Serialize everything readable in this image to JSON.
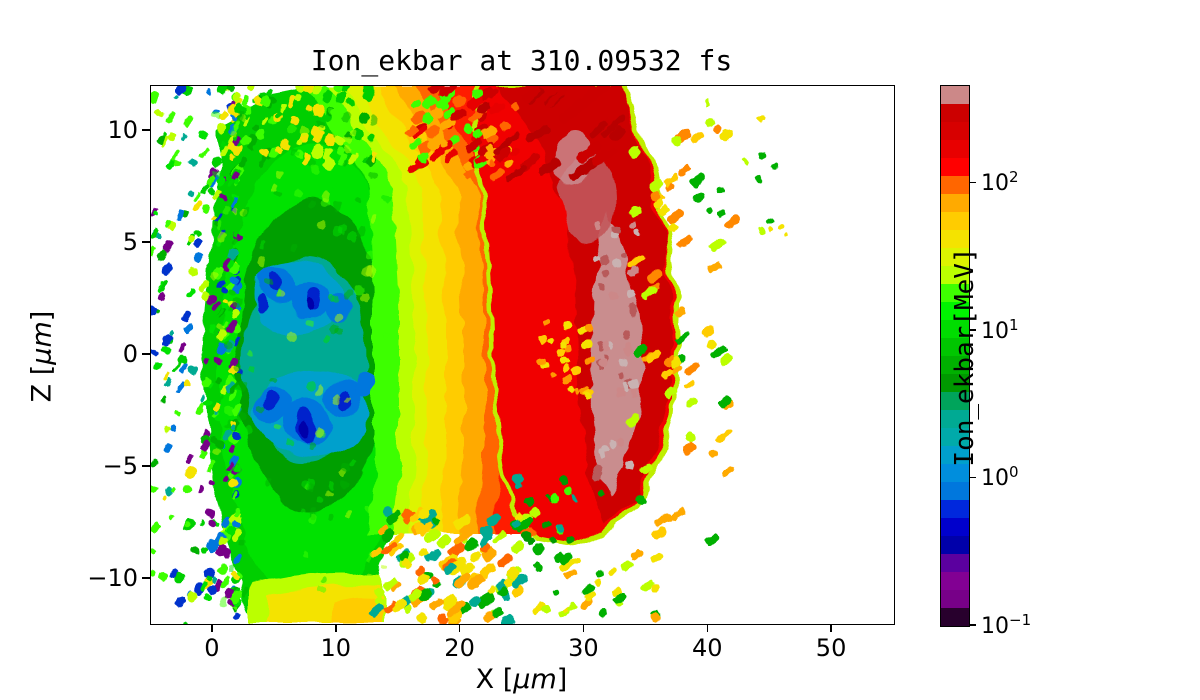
{
  "figure": {
    "title": "Ion_ekbar at 310.09532 fs",
    "x_axis": {
      "label_prefix": "X [",
      "label_unit": "μm",
      "label_suffix": "]"
    },
    "y_axis": {
      "label_prefix": "Z [",
      "label_unit": "μm",
      "label_suffix": "]"
    },
    "colorbar_label": "Ion_ekbar[MeV]"
  },
  "chart_data": {
    "type": "heatmap",
    "title": "Ion_ekbar at 310.09532 fs",
    "quantity": "Ion_ekbar",
    "time_fs": 310.09532,
    "unit": "MeV",
    "xlabel": "X [μm]",
    "ylabel": "Z [μm]",
    "xlim": [
      -5,
      55
    ],
    "ylim": [
      -12,
      12
    ],
    "x_ticks": [
      0,
      10,
      20,
      30,
      40,
      50
    ],
    "y_ticks": [
      10,
      5,
      0,
      -5,
      -10
    ],
    "grid": false,
    "colorbar": {
      "label": "Ion_ekbar[MeV]",
      "scale": "log",
      "tick_exponents": [
        2,
        1,
        0,
        -1
      ],
      "tick_values_MeV": [
        100,
        10,
        1,
        0.1
      ],
      "log_min": -1,
      "log_max": 2.66,
      "range_MeV": [
        0.1,
        460
      ],
      "colormap": "nipy_spectral",
      "n_levels": 30,
      "level_colors": [
        "#28002d",
        "#770088",
        "#820093",
        "#5b009f",
        "#0000aa",
        "#0000cc",
        "#0028dd",
        "#0077dd",
        "#008edd",
        "#009fcc",
        "#00aaaa",
        "#00aa93",
        "#00a45b",
        "#009900",
        "#00b000",
        "#00c600",
        "#00dd00",
        "#00f400",
        "#3eff00",
        "#bbff00",
        "#ddf400",
        "#f4e300",
        "#ffcc00",
        "#ffaa00",
        "#ff6600",
        "#ff0000",
        "#e80000",
        "#d70000",
        "#cc0000",
        "#cc8888"
      ]
    },
    "regions": [
      {
        "label": "lowest-energy blue cores (~0.3-1 MeV)",
        "x_um": [
          3,
          13
        ],
        "z_um": [
          -4,
          4
        ]
      },
      {
        "label": "cyan/teal shell (~1-3 MeV)",
        "x_um": [
          2,
          14
        ],
        "z_um": [
          -5,
          5
        ]
      },
      {
        "label": "green bulk plasma cloud (~5-15 MeV)",
        "x_um": [
          -2,
          16
        ],
        "z_um": [
          -12,
          12
        ]
      },
      {
        "label": "yellow transition bands (~20-40 MeV)",
        "x_um": [
          14,
          20
        ],
        "z_um": [
          -8,
          12
        ]
      },
      {
        "label": "orange shell (~50-90 MeV)",
        "x_um": [
          19,
          23
        ],
        "z_um": [
          -8,
          12
        ]
      },
      {
        "label": "red high-energy front (~100-250 MeV)",
        "x_um": [
          21,
          37
        ],
        "z_um": [
          -8.5,
          12
        ]
      },
      {
        "label": "peak-energy rosy-gray crescent (>300 MeV)",
        "x_um": [
          30,
          35
        ],
        "z_um": [
          -6.5,
          9
        ]
      },
      {
        "label": "sparse low-energy speckle halo",
        "x_um": [
          -5,
          2
        ],
        "z_um": [
          -12,
          12
        ]
      },
      {
        "label": "detached fast fragments (orange/yellow dashes)",
        "x_um": [
          33,
          43
        ],
        "z_um": [
          -9,
          11
        ]
      },
      {
        "label": "bottom ejecta dashes over white gap",
        "x_um": [
          13,
          26
        ],
        "z_um": [
          -12,
          -7
        ]
      }
    ]
  }
}
